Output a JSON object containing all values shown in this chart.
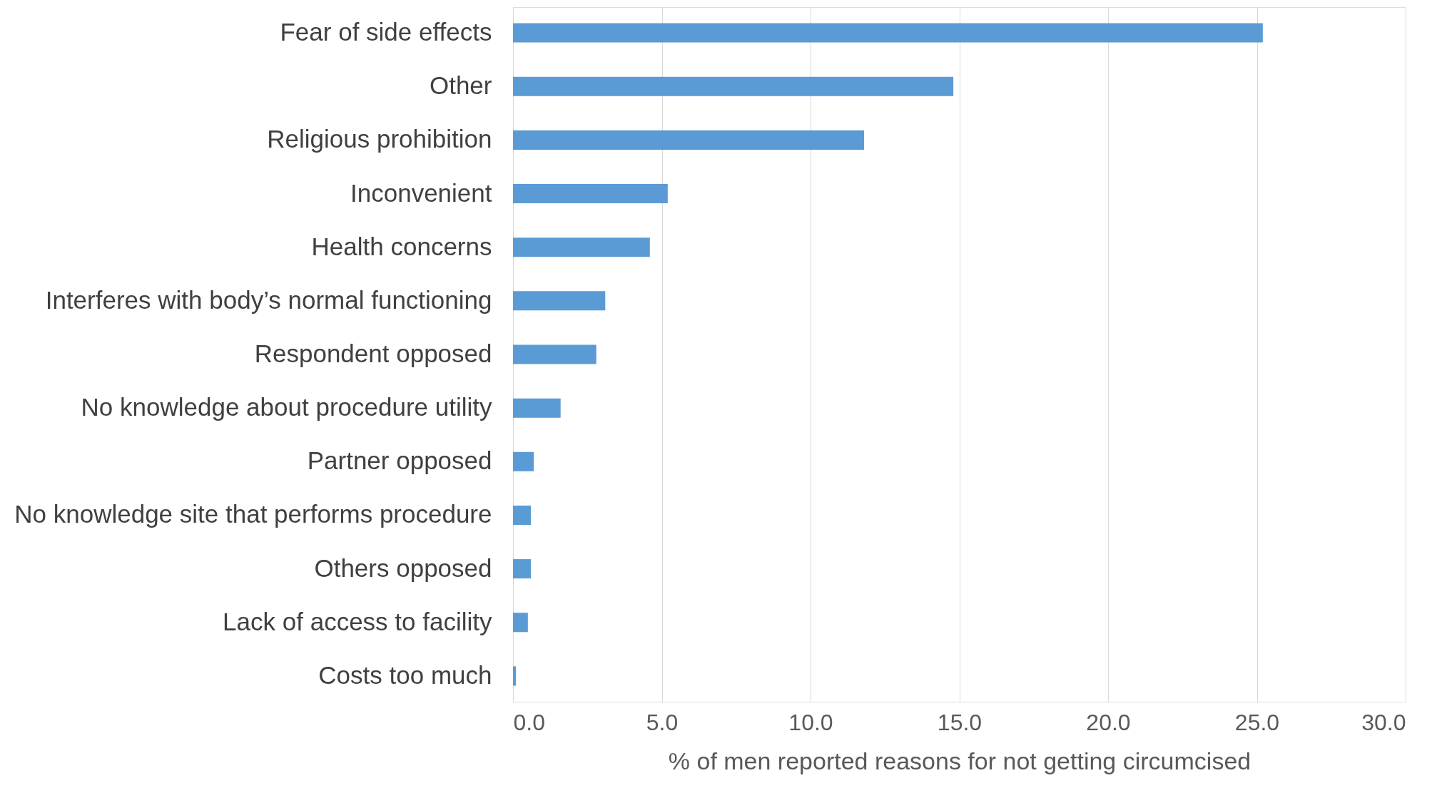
{
  "chart_data": {
    "type": "bar",
    "orientation": "horizontal",
    "xlabel": "% of men reported reasons for not getting circumcised",
    "categories": [
      "Fear of side effects",
      "Other",
      "Religious prohibition",
      "Inconvenient",
      "Health concerns",
      "Interferes with body’s normal functioning",
      "Respondent opposed",
      "No knowledge about procedure utility",
      "Partner opposed",
      "No  knowledge site that performs procedure",
      "Others opposed",
      "Lack of access to facility",
      "Costs too much"
    ],
    "values": [
      25.2,
      14.8,
      11.8,
      5.2,
      4.6,
      3.1,
      2.8,
      1.6,
      0.7,
      0.6,
      0.6,
      0.5,
      0.1
    ],
    "color": "#5b9bd5",
    "xlim": [
      0,
      30
    ],
    "xticks": [
      {
        "value": 0,
        "label": "0.0"
      },
      {
        "value": 5,
        "label": "5.0"
      },
      {
        "value": 10,
        "label": "10.0"
      },
      {
        "value": 15,
        "label": "15.0"
      },
      {
        "value": 20,
        "label": "20.0"
      },
      {
        "value": 25,
        "label": "25.0"
      },
      {
        "value": 30,
        "label": "30.0"
      }
    ],
    "grid": "x"
  }
}
